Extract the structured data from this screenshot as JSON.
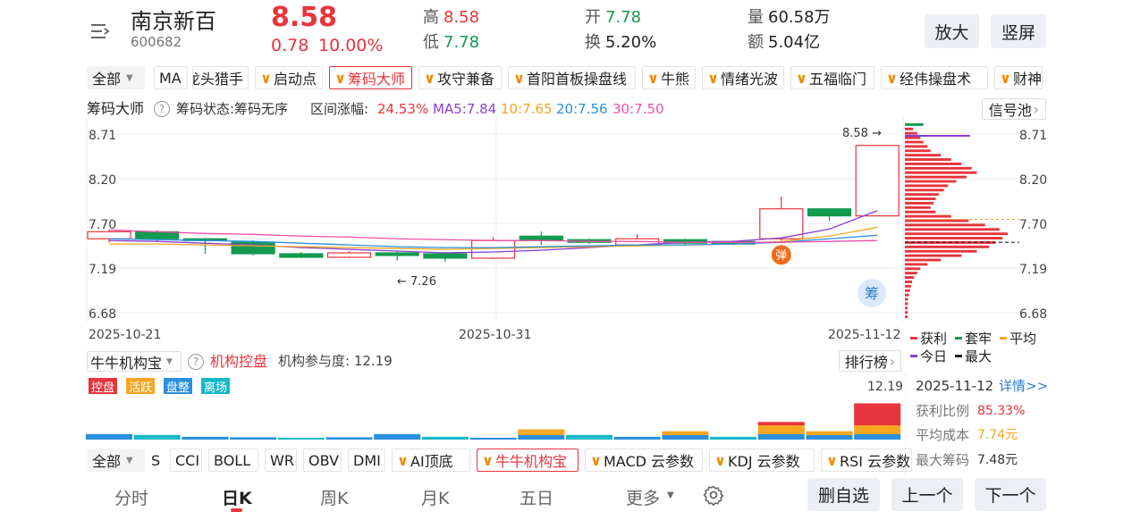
{
  "header": {
    "name": "南京新百",
    "code": "600682",
    "price": "8.58",
    "change": "0.78",
    "change_pct": "10.00%",
    "high_label": "高",
    "high": "8.58",
    "low_label": "低",
    "low": "7.78",
    "open_label": "开",
    "open": "7.78",
    "turnover_label": "换",
    "turnover": "5.20%",
    "vol_label": "量",
    "vol": "60.58万",
    "amt_label": "额",
    "amt": "5.04亿",
    "zoom_btn": "放大",
    "portrait_btn": "竖屏"
  },
  "indicator_bar": {
    "all": "全部",
    "ma": "MA",
    "items": [
      "龙头猎手",
      "启动点",
      "筹码大师",
      "攻守兼备",
      "首阳首板操盘线",
      "牛熊",
      "情绪光波",
      "五福临门",
      "经伟操盘术",
      "财神"
    ],
    "selected": "筹码大师"
  },
  "chip_info": {
    "title": "筹码大师",
    "state": "筹码状态:筹码无序",
    "range_label": "区间涨幅:",
    "range_value": "24.53%",
    "ma5": "MA5:7.84",
    "ma10": "10:7.65",
    "ma20": "20:7.56",
    "ma30": "30:7.50",
    "signal_pool": "信号池"
  },
  "main_chart": {
    "y_left": [
      "8.71",
      "8.20",
      "7.70",
      "7.19",
      "6.68"
    ],
    "y_right": [
      "8.71",
      "8.20",
      "7.70",
      "7.19",
      "6.68"
    ],
    "dates": [
      "2025-10-21",
      "2025-10-31",
      "2025-11-12"
    ],
    "high_marker": "8.58",
    "low_marker": "7.26",
    "bounce_badge": "弹",
    "chip_badge": "筹"
  },
  "chart_data": {
    "type": "candlestick",
    "ylim": [
      6.68,
      8.71
    ],
    "candles": [
      {
        "o": 7.52,
        "c": 7.6,
        "h": 7.62,
        "l": 7.48,
        "up": true
      },
      {
        "o": 7.6,
        "c": 7.52,
        "h": 7.62,
        "l": 7.49,
        "up": false
      },
      {
        "o": 7.52,
        "c": 7.5,
        "h": 7.53,
        "l": 7.35,
        "up": false
      },
      {
        "o": 7.48,
        "c": 7.35,
        "h": 7.5,
        "l": 7.33,
        "up": false
      },
      {
        "o": 7.35,
        "c": 7.31,
        "h": 7.37,
        "l": 7.3,
        "up": false
      },
      {
        "o": 7.31,
        "c": 7.36,
        "h": 7.38,
        "l": 7.3,
        "up": true
      },
      {
        "o": 7.36,
        "c": 7.33,
        "h": 7.38,
        "l": 7.27,
        "up": false
      },
      {
        "o": 7.35,
        "c": 7.3,
        "h": 7.37,
        "l": 7.26,
        "up": false
      },
      {
        "o": 7.3,
        "c": 7.5,
        "h": 7.54,
        "l": 7.29,
        "up": true
      },
      {
        "o": 7.55,
        "c": 7.5,
        "h": 7.6,
        "l": 7.45,
        "up": false
      },
      {
        "o": 7.51,
        "c": 7.48,
        "h": 7.52,
        "l": 7.46,
        "up": false
      },
      {
        "o": 7.45,
        "c": 7.52,
        "h": 7.57,
        "l": 7.43,
        "up": true
      },
      {
        "o": 7.51,
        "c": 7.47,
        "h": 7.52,
        "l": 7.45,
        "up": false
      },
      {
        "o": 7.49,
        "c": 7.46,
        "h": 7.5,
        "l": 7.45,
        "up": false
      },
      {
        "o": 7.52,
        "c": 7.86,
        "h": 8.0,
        "l": 7.5,
        "up": true
      },
      {
        "o": 7.86,
        "c": 7.78,
        "h": 7.86,
        "l": 7.72,
        "up": false
      },
      {
        "o": 7.78,
        "c": 8.58,
        "h": 8.58,
        "l": 7.78,
        "up": true
      }
    ],
    "ma": {
      "MA5": [
        7.5,
        7.49,
        7.47,
        7.45,
        7.42,
        7.4,
        7.38,
        7.36,
        7.37,
        7.39,
        7.42,
        7.45,
        7.48,
        7.49,
        7.53,
        7.63,
        7.84
      ],
      "MA10": [
        7.46,
        7.46,
        7.45,
        7.44,
        7.43,
        7.42,
        7.41,
        7.4,
        7.41,
        7.42,
        7.43,
        7.44,
        7.45,
        7.46,
        7.49,
        7.55,
        7.65
      ],
      "MA20": [
        7.52,
        7.51,
        7.5,
        7.49,
        7.47,
        7.45,
        7.43,
        7.42,
        7.42,
        7.43,
        7.44,
        7.45,
        7.45,
        7.46,
        7.48,
        7.52,
        7.56
      ],
      "MA30": [
        7.62,
        7.6,
        7.58,
        7.57,
        7.55,
        7.54,
        7.52,
        7.51,
        7.5,
        7.5,
        7.49,
        7.49,
        7.48,
        7.48,
        7.48,
        7.49,
        7.5
      ]
    },
    "chip_dist": [
      0.18,
      0.08,
      0.12,
      0.15,
      0.18,
      0.22,
      0.25,
      0.35,
      0.45,
      0.55,
      0.65,
      0.7,
      0.6,
      0.5,
      0.42,
      0.38,
      0.33,
      0.3,
      0.28,
      0.25,
      0.3,
      0.45,
      0.62,
      0.78,
      0.92,
      1.0,
      0.95,
      0.88,
      0.82,
      0.7,
      0.55,
      0.35,
      0.22,
      0.15,
      0.12,
      0.09,
      0.07,
      0.06,
      0.05,
      0.04,
      0.03,
      0.03,
      0.02,
      0.02,
      0.02
    ],
    "inst_values": [
      0.12,
      0.1,
      0.06,
      0.05,
      0.04,
      0.05,
      0.12,
      0.06,
      0.04,
      0.22,
      0.1,
      0.06,
      0.18,
      0.06,
      0.38,
      0.18,
      0.78
    ]
  },
  "legend": {
    "profit": "获利",
    "trapped": "套牢",
    "avg": "平均",
    "today": "今日",
    "max": "最大"
  },
  "inst_panel": {
    "selector": "牛牛机构宝",
    "title": "机构控盘",
    "participation": "机构参与度: 12.19",
    "rank": "排行榜",
    "tags": [
      "控盘",
      "活跃",
      "盘整",
      "离场"
    ],
    "max_value": "12.19"
  },
  "detail_card": {
    "date": "2025-11-12",
    "link": "详情>>",
    "profit_label": "获利比例",
    "profit_value": "85.33%",
    "cost_label": "平均成本",
    "cost_value": "7.74元",
    "maxchip_label": "最大筹码",
    "maxchip_value": "7.48元"
  },
  "bottom_indicators": {
    "all": "全部",
    "plain": [
      "S",
      "CCI",
      "BOLL",
      "WR",
      "OBV",
      "DMI"
    ],
    "v_items": [
      "AI顶底",
      "牛牛机构宝",
      "MACD 云参数",
      "KDJ 云参数",
      "RSI 云参数"
    ],
    "selected": "牛牛机构宝"
  },
  "nav": {
    "tabs": [
      "分时",
      "日K",
      "周K",
      "月K",
      "五日",
      "更多"
    ],
    "active": "日K",
    "delete_btn": "删自选",
    "prev_btn": "上一个",
    "next_btn": "下一个"
  },
  "colors": {
    "up": "#e8343c",
    "down": "#129a4f",
    "ma5": "#8a3fd1",
    "ma10": "#f5a623",
    "ma20": "#2a8fdc",
    "ma30": "#ee4fa6"
  }
}
